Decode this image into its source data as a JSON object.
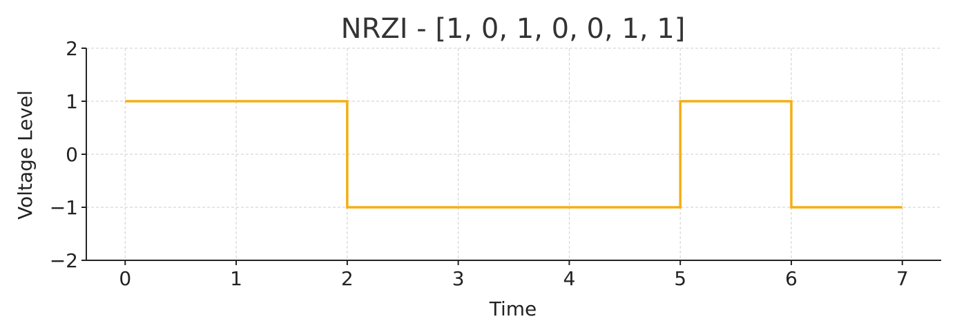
{
  "chart_data": {
    "type": "line",
    "step": "post",
    "title": "NRZI - [1, 0, 1, 0, 0, 1, 1]",
    "xlabel": "Time",
    "ylabel": "Voltage Level",
    "x": [
      0,
      1,
      2,
      3,
      4,
      5,
      6,
      7
    ],
    "series": [
      {
        "values": [
          1,
          1,
          -1,
          -1,
          -1,
          1,
          -1,
          -1
        ],
        "color": "#F5AE12"
      }
    ],
    "xlim": [
      -0.35,
      7.35
    ],
    "ylim": [
      -2,
      2
    ],
    "xticks": [
      0,
      1,
      2,
      3,
      4,
      5,
      6,
      7
    ],
    "yticks": [
      2,
      1,
      0,
      -1,
      -2
    ],
    "xtick_labels": [
      "0",
      "1",
      "2",
      "3",
      "4",
      "5",
      "6",
      "7"
    ],
    "ytick_labels": [
      "2",
      "1",
      "0",
      "−1",
      "−2"
    ],
    "grid": true,
    "grid_style": "dashed",
    "spines": "left-bottom"
  }
}
